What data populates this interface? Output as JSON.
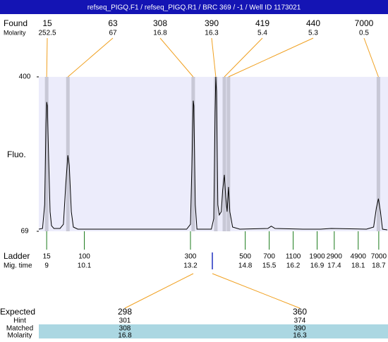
{
  "header": {
    "title": "refseq_PIGQ.F1 / refseq_PIGQ.R1 / BRC 369 / -1 / Well ID 1173021"
  },
  "found": {
    "label": "Found",
    "molarity_label": "Molarity",
    "peaks": [
      {
        "size": 15,
        "molarity": 252.5,
        "time": 9.0
      },
      {
        "size": 63,
        "molarity": 67,
        "time": 9.62
      },
      {
        "size": 308,
        "molarity": 16.8,
        "time": 13.28
      },
      {
        "size": 390,
        "molarity": 16.3,
        "time": 13.94
      },
      {
        "size": 419,
        "molarity": 5.4,
        "time": 14.19
      },
      {
        "size": 440,
        "molarity": 5.3,
        "time": 14.31
      },
      {
        "size": 7000,
        "molarity": 0.5,
        "time": 18.69
      }
    ]
  },
  "chart_data": {
    "type": "line",
    "ylabel": "Fluo.",
    "ylim": [
      69,
      400
    ],
    "yticks": [
      400,
      69
    ],
    "xlim": [
      8.77,
      18.97
    ],
    "x": [
      8.77,
      8.88,
      8.94,
      8.98,
      9.0,
      9.02,
      9.06,
      9.1,
      9.14,
      9.21,
      9.39,
      9.49,
      9.56,
      9.62,
      9.66,
      9.72,
      9.78,
      9.91,
      11.76,
      13.09,
      13.2,
      13.24,
      13.28,
      13.3,
      13.34,
      13.39,
      13.81,
      13.88,
      13.92,
      13.94,
      13.96,
      14.0,
      14.04,
      14.1,
      14.14,
      14.19,
      14.23,
      14.27,
      14.31,
      14.35,
      14.43,
      14.64,
      15.46,
      15.56,
      15.67,
      16.49,
      17.0,
      17.31,
      18.34,
      18.55,
      18.63,
      18.69,
      18.75,
      18.81,
      18.95
    ],
    "series": [
      {
        "color": "#000000",
        "values": [
          73.5,
          75,
          126,
          300,
          346,
          338,
          217,
          111,
          81,
          75,
          75,
          84,
          172,
          232,
          210,
          111,
          78,
          73.5,
          73.5,
          73.5,
          84,
          202,
          349,
          338,
          126,
          73.5,
          73.5,
          96,
          323,
          400,
          368,
          126,
          104,
          111,
          157,
          190,
          142,
          111,
          164,
          111,
          78,
          73.5,
          75,
          80,
          75,
          73.5,
          73.5,
          75,
          73.5,
          78,
          119,
          139,
          111,
          73.5,
          72
        ]
      }
    ]
  },
  "ladder": {
    "label": "Ladder",
    "time_label": "Mig. time",
    "sizes": [
      15,
      100,
      300,
      500,
      700,
      1100,
      1900,
      2900,
      4900,
      7000
    ],
    "times": [
      9,
      10.1,
      13.2,
      14.8,
      15.5,
      16.2,
      16.9,
      17.4,
      18.1,
      18.7
    ]
  },
  "expected": {
    "label": "Expected",
    "hint_label": "Hint",
    "matched_label": "Matched",
    "molarity_label": "Molarity",
    "columns": [
      {
        "expected": 298,
        "hint": 301,
        "matched": 308,
        "molarity": 16.8
      },
      {
        "expected": 360,
        "hint": 374,
        "matched": 390,
        "molarity": 16.3
      }
    ]
  }
}
